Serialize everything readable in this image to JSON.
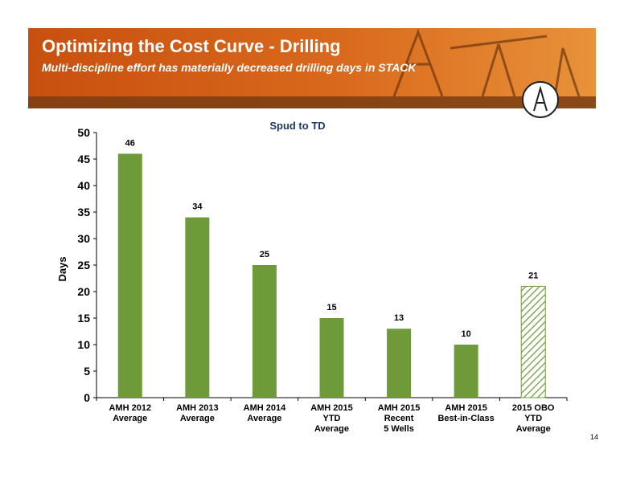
{
  "header": {
    "title": "Optimizing the Cost Curve - Drilling",
    "subtitle": "Multi-discipline effort has materially decreased drilling days in STACK"
  },
  "page_number": "14",
  "chart_data": {
    "type": "bar",
    "title": "Spud to TD",
    "y_label": "Days",
    "categories": [
      "AMH 2012\nAverage",
      "AMH 2013\nAverage",
      "AMH 2014\nAverage",
      "AMH 2015\nYTD\nAverage",
      "AMH 2015\nRecent\n5 Wells",
      "AMH 2015\nBest-in-Class",
      "2015 OBO\nYTD\nAverage"
    ],
    "values": [
      46,
      34,
      25,
      15,
      13,
      10,
      21
    ],
    "color": "#6e9a3a",
    "bar_styles": [
      "solid",
      "solid",
      "solid",
      "solid",
      "solid",
      "solid",
      "hatched"
    ],
    "ylim": [
      0,
      50
    ],
    "yticks": [
      0,
      5,
      10,
      15,
      20,
      25,
      30,
      35,
      40,
      45,
      50
    ],
    "grid": false
  }
}
